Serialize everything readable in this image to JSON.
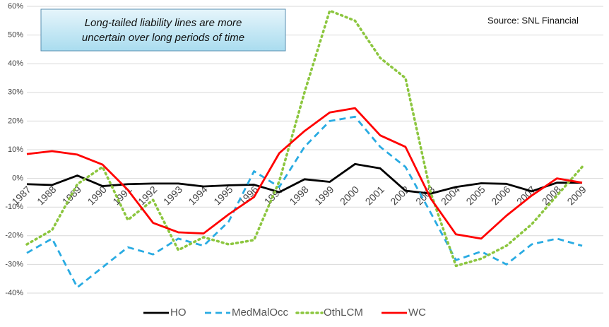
{
  "chart_data": {
    "type": "line",
    "annotations": [
      "Long-tailed liability lines are more",
      "uncertain over long periods of time"
    ],
    "source": "Source: SNL Financial",
    "categories": [
      "1987",
      "1988",
      "1989",
      "1990",
      "1991",
      "1992",
      "1993",
      "1994",
      "1995",
      "1996",
      "1997",
      "1998",
      "1999",
      "2000",
      "2001",
      "2002",
      "2003",
      "2004",
      "2005",
      "2006",
      "2007",
      "2008",
      "2009"
    ],
    "series": [
      {
        "name": "HO",
        "color": "#000000",
        "dash": "solid",
        "values": [
          -2,
          -2.3,
          1,
          -2.7,
          -2,
          -1.8,
          -1.8,
          -2.8,
          -2.4,
          -2.2,
          -4.8,
          -0.3,
          -1.2,
          5,
          3.5,
          -4.3,
          -5.3,
          -3,
          -1.7,
          -1.9,
          -4.5,
          -1.5,
          -1.5
        ]
      },
      {
        "name": "MedMalOcc",
        "color": "#29abe2",
        "dash": "dashed",
        "values": [
          -26,
          -21,
          -38,
          -31,
          -24,
          -26.5,
          -21,
          -23.5,
          -15,
          2.5,
          -3,
          11,
          20,
          21.5,
          11,
          4,
          -12,
          -28.5,
          -25.5,
          -30,
          -23,
          -21,
          -23.5
        ]
      },
      {
        "name": "OthLCM",
        "color": "#8cc63f",
        "dash": "dotted",
        "values": [
          -23,
          -18,
          -2,
          4,
          -14.5,
          -7.5,
          -25,
          -20.5,
          -23,
          -21.5,
          -1,
          30,
          58.5,
          55,
          42,
          35,
          -5,
          -30.5,
          -28,
          -23.5,
          -16,
          -6,
          4
        ]
      },
      {
        "name": "WC",
        "color": "#ff0000",
        "dash": "solid",
        "values": [
          8.5,
          9.5,
          8.3,
          4.8,
          -4,
          -15.5,
          -18.8,
          -19.2,
          -12.5,
          -6.5,
          8.8,
          16.5,
          23,
          24.5,
          15,
          11,
          -7,
          -19.5,
          -21,
          -13,
          -6,
          0,
          -1.5
        ]
      }
    ],
    "ylim": [
      -40,
      60
    ],
    "yticks": [
      {
        "value": -40,
        "label": "-40%"
      },
      {
        "value": -30,
        "label": "-30%"
      },
      {
        "value": -20,
        "label": "-20%"
      },
      {
        "value": -10,
        "label": "-10%"
      },
      {
        "value": 0,
        "label": "0%"
      },
      {
        "value": 10,
        "label": "10%"
      },
      {
        "value": 20,
        "label": "20%"
      },
      {
        "value": 30,
        "label": "30%"
      },
      {
        "value": 40,
        "label": "40%"
      },
      {
        "value": 50,
        "label": "50%"
      },
      {
        "value": 60,
        "label": "60%"
      }
    ],
    "grid": true
  }
}
